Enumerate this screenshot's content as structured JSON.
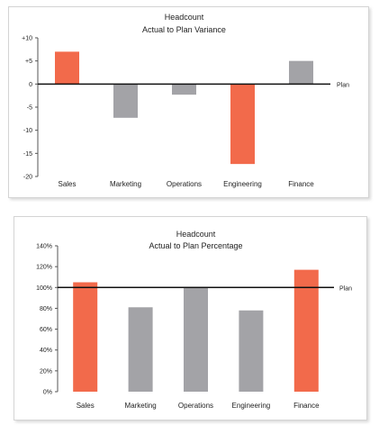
{
  "charts": [
    {
      "type": "bar",
      "title": "Headcount",
      "subtitle": "Actual to Plan Variance",
      "categories": [
        "Sales",
        "Marketing",
        "Operations",
        "Engineering",
        "Finance"
      ],
      "values": [
        7,
        -7.3,
        -2.3,
        -17.3,
        5
      ],
      "highlight": [
        true,
        false,
        false,
        true,
        false
      ],
      "ylim": [
        -20,
        10
      ],
      "yticks": [
        10,
        5,
        0,
        -5,
        -10,
        -15,
        -20
      ],
      "ytick_labels": [
        "+10",
        "+5",
        "0",
        "-5",
        "-10",
        "-15",
        "-20"
      ],
      "reference_line": {
        "value": 0,
        "label": "Plan"
      },
      "colors": {
        "highlight": "#f26a4b",
        "other": "#a3a3a7"
      }
    },
    {
      "type": "bar",
      "title": "Headcount",
      "subtitle": "Actual to Plan Percentage",
      "categories": [
        "Sales",
        "Marketing",
        "Operations",
        "Engineering",
        "Finance"
      ],
      "values": [
        105,
        81,
        100,
        78,
        117
      ],
      "highlight": [
        true,
        false,
        false,
        false,
        true
      ],
      "ylim": [
        0,
        140
      ],
      "yticks": [
        140,
        120,
        100,
        80,
        60,
        40,
        20,
        0
      ],
      "ytick_labels": [
        "140%",
        "120%",
        "100%",
        "80%",
        "60%",
        "40%",
        "20%",
        "0%"
      ],
      "reference_line": {
        "value": 100,
        "label": "Plan"
      },
      "colors": {
        "highlight": "#f26a4b",
        "other": "#a3a3a7"
      }
    }
  ],
  "chart_data": [
    {
      "type": "bar",
      "title": "Headcount",
      "subtitle": "Actual to Plan Variance",
      "categories": [
        "Sales",
        "Marketing",
        "Operations",
        "Engineering",
        "Finance"
      ],
      "values": [
        7,
        -7.3,
        -2.3,
        -17.3,
        5
      ],
      "ylim": [
        -20,
        10
      ],
      "grid": false,
      "reference_line": {
        "value": 0,
        "label": "Plan"
      }
    },
    {
      "type": "bar",
      "title": "Headcount",
      "subtitle": "Actual to Plan Percentage",
      "categories": [
        "Sales",
        "Marketing",
        "Operations",
        "Engineering",
        "Finance"
      ],
      "values": [
        105,
        81,
        100,
        78,
        117
      ],
      "ylim": [
        0,
        140
      ],
      "grid": false,
      "reference_line": {
        "value": 100,
        "label": "Plan"
      }
    }
  ]
}
